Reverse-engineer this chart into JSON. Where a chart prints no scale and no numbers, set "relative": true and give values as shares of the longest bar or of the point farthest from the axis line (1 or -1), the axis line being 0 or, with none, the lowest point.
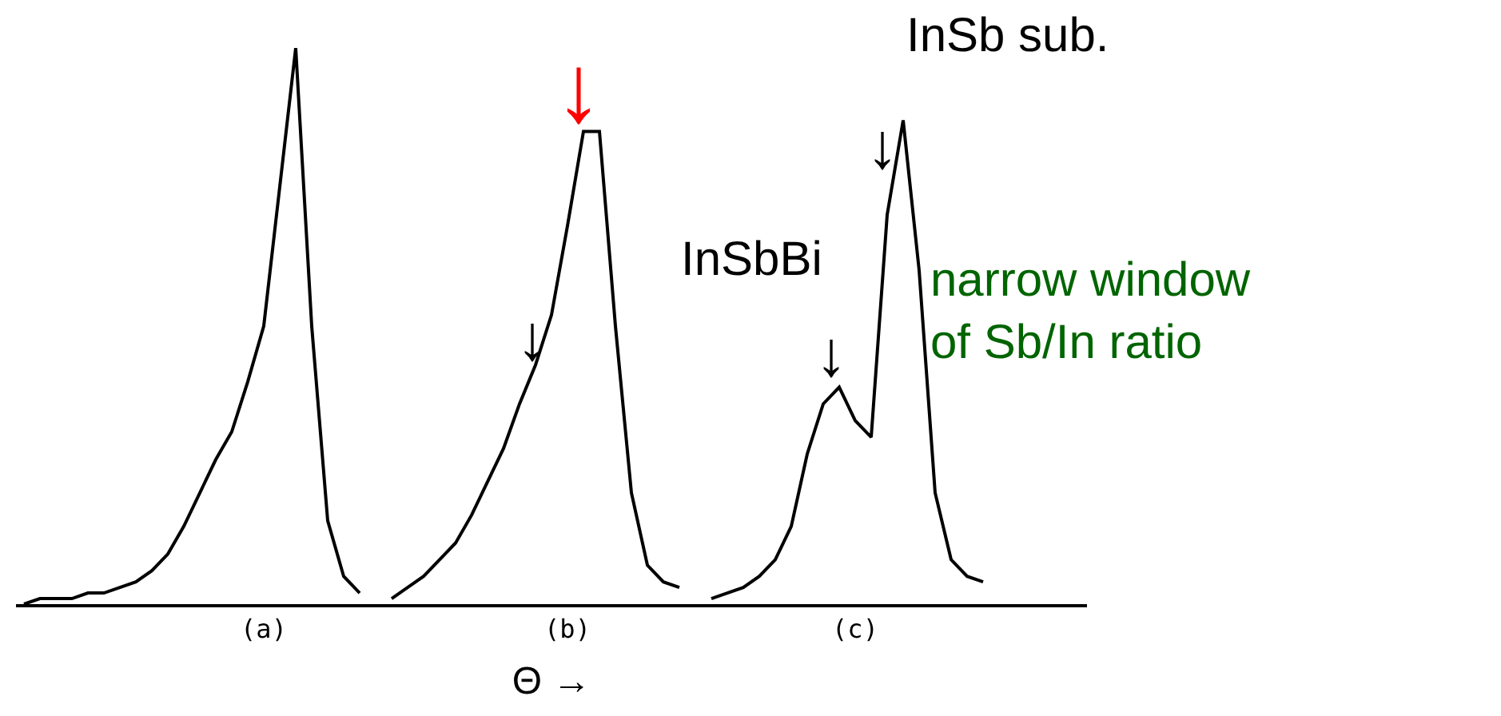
{
  "chart_data": {
    "type": "line",
    "relative": true,
    "xlabel": "Θ →",
    "categories": [
      null,
      null,
      null,
      null,
      null,
      null,
      null,
      null,
      null,
      null,
      null,
      null,
      null,
      null,
      null,
      "(a)",
      null,
      null,
      null,
      null,
      null,
      null,
      null,
      null,
      null,
      null,
      null,
      null,
      null,
      null,
      null,
      null,
      null,
      null,
      "(b)",
      null,
      null,
      null,
      null,
      null,
      null,
      null,
      null,
      null,
      null,
      null,
      null,
      null,
      null,
      null,
      null,
      null,
      "(c)",
      null,
      null,
      null,
      null,
      null,
      null,
      null,
      null
    ],
    "series": [
      {
        "color": "#000000",
        "values": [
          0,
          0.01,
          0.01,
          0.01,
          0.02,
          0.02,
          0.03,
          0.04,
          0.06,
          0.09,
          0.14,
          0.2,
          0.26,
          0.31,
          0.4,
          0.5,
          0.75,
          1,
          0.5,
          0.15,
          0.05,
          0.02,
          null,
          0.01,
          0.03,
          0.05,
          0.08,
          0.11,
          0.16,
          0.22,
          0.28,
          0.36,
          0.43,
          0.52,
          0.68,
          0.85,
          0.85,
          0.5,
          0.2,
          0.07,
          0.04,
          0.03,
          null,
          0.01,
          0.02,
          0.03,
          0.05,
          0.08,
          0.14,
          0.27,
          0.36,
          0.39,
          0.33,
          0.3,
          0.7,
          0.87,
          0.6,
          0.2,
          0.08,
          0.05,
          0.04
        ]
      }
    ],
    "annotations": [
      "↓",
      "↓",
      "InSbBi",
      "↓",
      "InSb sub.",
      "↓",
      "narrow window\nof Sb/In ratio"
    ],
    "marker": "none",
    "line_style": "solid"
  }
}
